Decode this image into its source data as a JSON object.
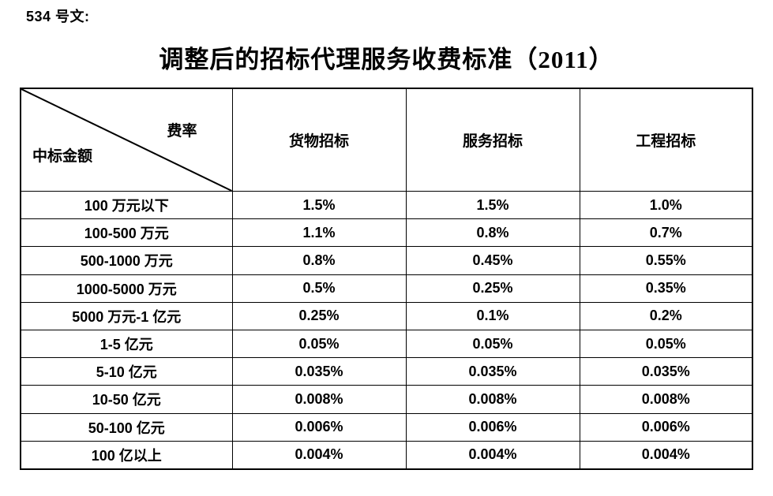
{
  "page": {
    "doc_label": "534 号文:",
    "title": "调整后的招标代理服务收费标准（2011）"
  },
  "table": {
    "corner": {
      "rate_label": "费率",
      "amount_label": "中标金额"
    },
    "columns": [
      "货物招标",
      "服务招标",
      "工程招标"
    ],
    "rows": [
      {
        "label": "100 万元以下",
        "values": [
          "1.5%",
          "1.5%",
          "1.0%"
        ]
      },
      {
        "label": "100-500 万元",
        "values": [
          "1.1%",
          "0.8%",
          "0.7%"
        ]
      },
      {
        "label": "500-1000 万元",
        "values": [
          "0.8%",
          "0.45%",
          "0.55%"
        ]
      },
      {
        "label": "1000-5000 万元",
        "values": [
          "0.5%",
          "0.25%",
          "0.35%"
        ]
      },
      {
        "label": "5000 万元-1 亿元",
        "values": [
          "0.25%",
          "0.1%",
          "0.2%"
        ]
      },
      {
        "label": "1-5 亿元",
        "values": [
          "0.05%",
          "0.05%",
          "0.05%"
        ]
      },
      {
        "label": "5-10 亿元",
        "values": [
          "0.035%",
          "0.035%",
          "0.035%"
        ]
      },
      {
        "label": "10-50 亿元",
        "values": [
          "0.008%",
          "0.008%",
          "0.008%"
        ]
      },
      {
        "label": "50-100 亿元",
        "values": [
          "0.006%",
          "0.006%",
          "0.006%"
        ]
      },
      {
        "label": "100 亿以上",
        "values": [
          "0.004%",
          "0.004%",
          "0.004%"
        ]
      }
    ]
  },
  "colors": {
    "text": "#000000",
    "border": "#000000",
    "background": "#ffffff"
  }
}
